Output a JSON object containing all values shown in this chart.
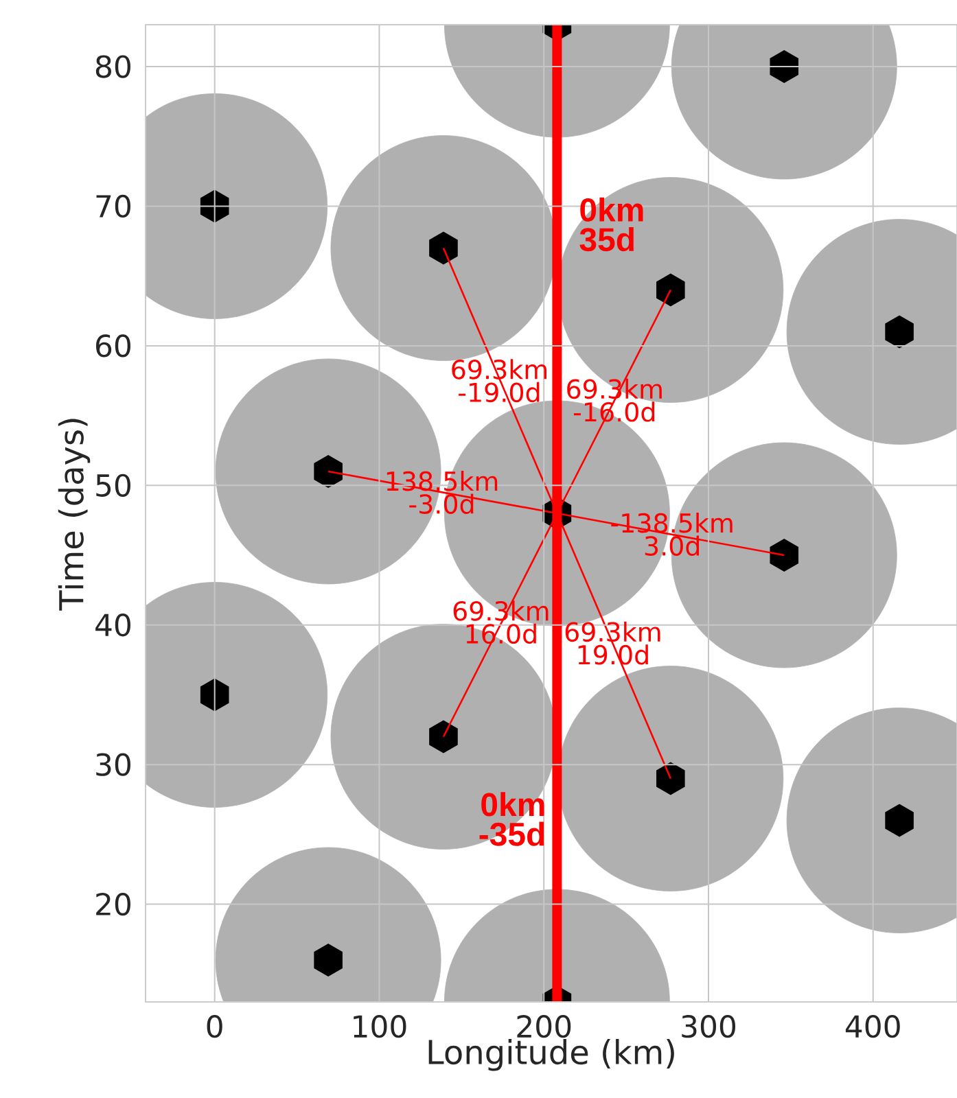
{
  "chart_data": {
    "type": "scatter",
    "xlabel": "Longitude (km)",
    "ylabel": "Time (days)",
    "xlim": [
      -42,
      451
    ],
    "ylim": [
      13,
      83
    ],
    "xticks": [
      0,
      100,
      200,
      300,
      400
    ],
    "yticks": [
      20,
      30,
      40,
      50,
      60,
      70,
      80
    ],
    "grid": true,
    "series": [
      {
        "type": "bubble",
        "color": "#b0b0b0",
        "x": [
          208,
          346,
          0,
          139,
          277,
          416,
          69,
          208,
          346,
          0,
          139,
          277,
          416,
          69,
          208
        ],
        "values": [
          83,
          80,
          70,
          67,
          64,
          61,
          51,
          48,
          45,
          35,
          32,
          29,
          26,
          16,
          13
        ],
        "sizes": [
          1,
          1,
          1,
          1,
          1,
          1,
          1,
          1,
          1,
          1,
          1,
          1,
          1,
          1,
          1
        ]
      },
      {
        "type": "scatter",
        "color": "#000000",
        "x": [
          208,
          346,
          0,
          139,
          277,
          416,
          69,
          208,
          346,
          0,
          139,
          277,
          416,
          69,
          208
        ],
        "values": [
          83,
          80,
          70,
          67,
          64,
          61,
          51,
          48,
          45,
          35,
          32,
          29,
          26,
          16,
          13
        ]
      },
      {
        "type": "line",
        "color": "#ff0000",
        "x": [
          208,
          139
        ],
        "values": [
          48,
          67
        ]
      },
      {
        "type": "line",
        "color": "#ff0000",
        "x": [
          208,
          277
        ],
        "values": [
          48,
          64
        ]
      },
      {
        "type": "line",
        "color": "#ff0000",
        "x": [
          208,
          69
        ],
        "values": [
          48,
          51
        ]
      },
      {
        "type": "line",
        "color": "#ff0000",
        "x": [
          208,
          346
        ],
        "values": [
          48,
          45
        ]
      },
      {
        "type": "line",
        "color": "#ff0000",
        "x": [
          208,
          139
        ],
        "values": [
          48,
          32
        ]
      },
      {
        "type": "line",
        "color": "#ff0000",
        "x": [
          208,
          277
        ],
        "values": [
          48,
          29
        ]
      }
    ],
    "ref_lines": [
      {
        "axis": "x",
        "value": 208,
        "color": "#ff0000"
      }
    ],
    "annotations": [
      {
        "text": "**0km**",
        "x": 208,
        "y": 68.7
      },
      {
        "text": "**35d**",
        "x": 208,
        "y": 68.7
      },
      {
        "text": "69.3km",
        "x": 173,
        "y": 57.5
      },
      {
        "text": "-19.0d",
        "x": 173,
        "y": 57.5
      },
      {
        "text": "69.3km",
        "x": 243,
        "y": 56.1
      },
      {
        "text": "-16.0d",
        "x": 243,
        "y": 56.1
      },
      {
        "text": "138.5km",
        "x": 138,
        "y": 49.5
      },
      {
        "text": "-3.0d",
        "x": 138,
        "y": 49.5
      },
      {
        "text": "-138.5km",
        "x": 278,
        "y": 46.5
      },
      {
        "text": "3.0d",
        "x": 278,
        "y": 46.5
      },
      {
        "text": "69.3km",
        "x": 174,
        "y": 40.2
      },
      {
        "text": "16.0d",
        "x": 174,
        "y": 40.2
      },
      {
        "text": "69.3km",
        "x": 242,
        "y": 38.7
      },
      {
        "text": "19.0d",
        "x": 242,
        "y": 38.7
      },
      {
        "text": "**0km**",
        "x": 208,
        "y": 26.1
      },
      {
        "text": "**-35d**",
        "x": 208,
        "y": 26.1
      }
    ]
  }
}
